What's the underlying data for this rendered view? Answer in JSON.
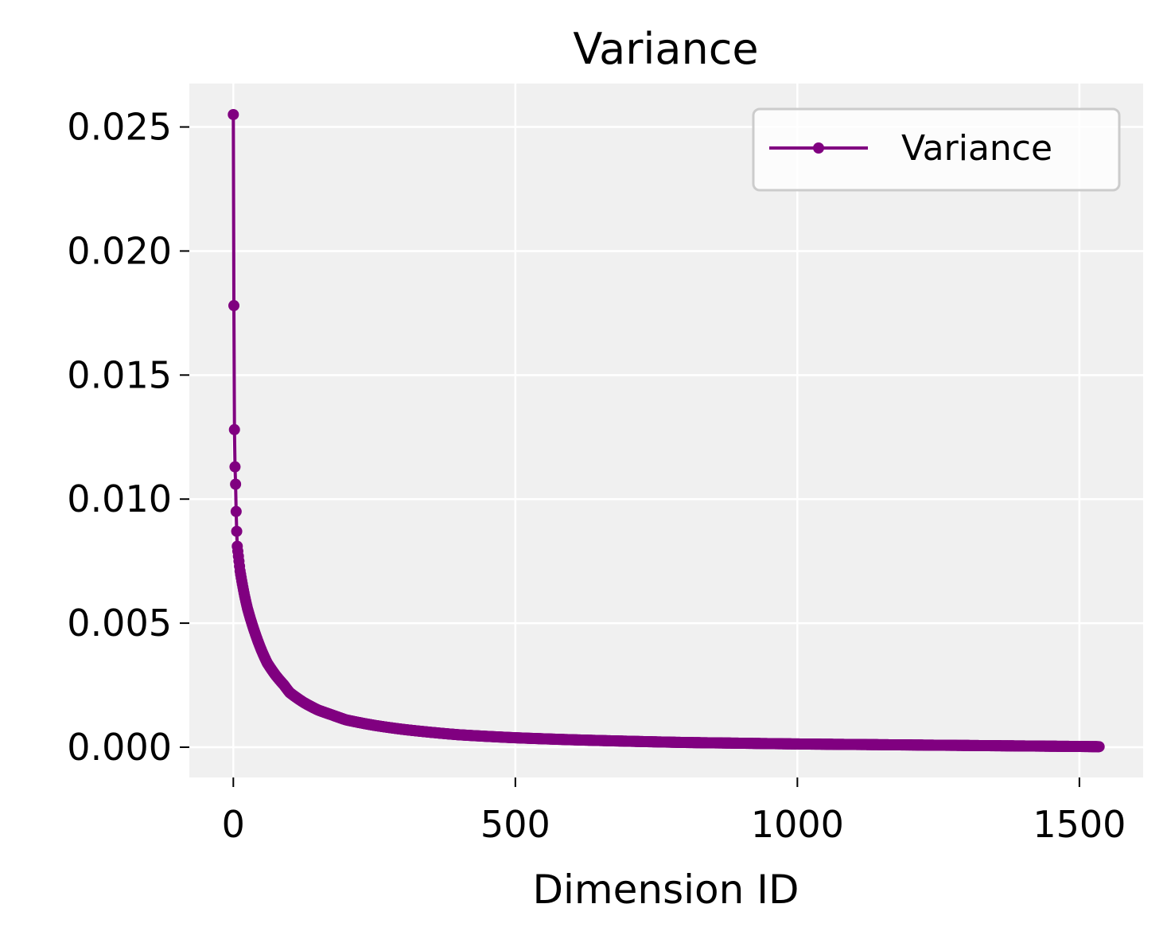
{
  "chart_data": {
    "type": "line",
    "title": "Variance",
    "xlabel": "Dimension ID",
    "ylabel": "",
    "xlim": [
      -78,
      1613
    ],
    "ylim": [
      -0.00122,
      0.02675
    ],
    "x_ticks": [
      0,
      500,
      1000,
      1500
    ],
    "x_tick_labels": [
      "0",
      "500",
      "1000",
      "1500"
    ],
    "y_ticks": [
      0.0,
      0.005,
      0.01,
      0.015,
      0.02,
      0.025
    ],
    "y_tick_labels": [
      "0.000",
      "0.005",
      "0.010",
      "0.015",
      "0.020",
      "0.025"
    ],
    "grid": true,
    "legend_position": "top-right",
    "series": [
      {
        "name": "Variance",
        "color": "#800080",
        "marker": "dot",
        "x": [
          0,
          1,
          2,
          3,
          4,
          5,
          6,
          7,
          8,
          10,
          12,
          15,
          20,
          25,
          30,
          40,
          50,
          60,
          75,
          90,
          100,
          125,
          150,
          175,
          200,
          250,
          300,
          350,
          400,
          500,
          600,
          700,
          800,
          900,
          1000,
          1100,
          1200,
          1300,
          1400,
          1500,
          1535
        ],
        "values": [
          0.0255,
          0.0178,
          0.0128,
          0.0113,
          0.0106,
          0.0095,
          0.0087,
          0.0081,
          0.0079,
          0.0075,
          0.0071,
          0.0067,
          0.0061,
          0.0056,
          0.0052,
          0.0045,
          0.0039,
          0.0034,
          0.0029,
          0.0025,
          0.0022,
          0.0018,
          0.0015,
          0.0013,
          0.0011,
          0.00088,
          0.00072,
          0.0006,
          0.0005,
          0.00038,
          0.0003,
          0.00024,
          0.00019,
          0.00016,
          0.00013,
          0.00011,
          9e-05,
          7e-05,
          5e-05,
          3e-05,
          2e-05
        ]
      }
    ]
  }
}
